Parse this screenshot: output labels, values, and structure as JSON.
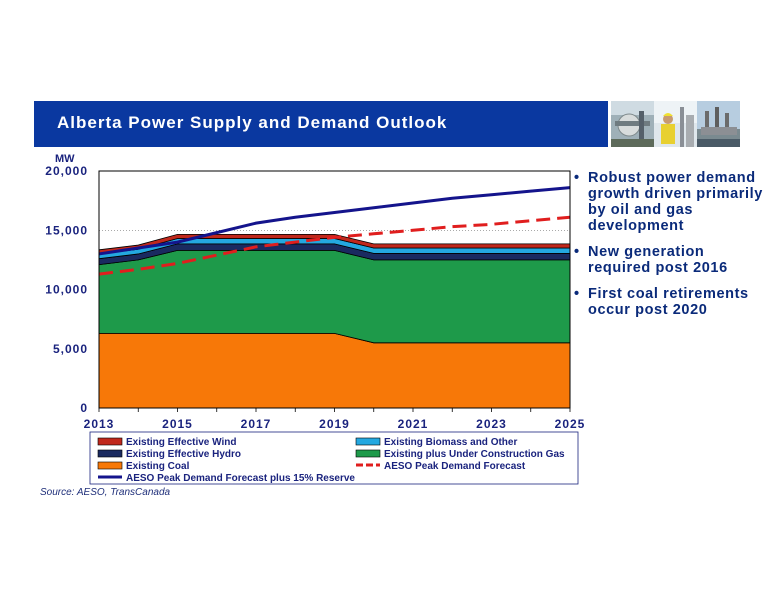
{
  "header": {
    "title": "Alberta Power Supply and Demand Outlook",
    "photos": [
      "industrial-plant-photo",
      "worker-photo",
      "power-plant-photo"
    ]
  },
  "bullets": [
    "Robust power demand growth driven primarily by oil and gas development",
    "New generation required post 2016",
    "First coal retirements occur post 2020"
  ],
  "source": "Source: AESO, TransCanada",
  "colors": {
    "title_bar": "#0a38a0",
    "coal": "#f77808",
    "gas": "#1e9a4a",
    "hydro": "#1a2a60",
    "biomass": "#24a8e0",
    "wind": "#c0281c",
    "demand": "#e01e1e",
    "reserve": "#14148c"
  },
  "chart_data": {
    "type": "area",
    "title": "",
    "ylabel": "MW",
    "xlabel": "",
    "ylim": [
      0,
      20000
    ],
    "yticks": [
      0,
      5000,
      10000,
      15000,
      20000
    ],
    "ytick_labels": [
      "0",
      "5,000",
      "10,000",
      "15,000",
      "20,000"
    ],
    "xticks": [
      2013,
      2015,
      2017,
      2019,
      2021,
      2023,
      2025
    ],
    "x": [
      2013,
      2014,
      2015,
      2016,
      2017,
      2018,
      2019,
      2020,
      2021,
      2022,
      2023,
      2024,
      2025
    ],
    "stacked_series": [
      {
        "name": "Existing Coal",
        "values": [
          6300,
          6300,
          6300,
          6300,
          6300,
          6300,
          6300,
          5500,
          5500,
          5500,
          5500,
          5500,
          5500
        ]
      },
      {
        "name": "Existing plus Under Construction Gas",
        "values": [
          5800,
          6200,
          7000,
          7000,
          7000,
          7000,
          7000,
          7000,
          7000,
          7000,
          7000,
          7000,
          7000
        ]
      },
      {
        "name": "Existing Effective Hydro",
        "values": [
          500,
          500,
          550,
          550,
          550,
          550,
          550,
          550,
          550,
          550,
          550,
          550,
          550
        ]
      },
      {
        "name": "Existing Biomass and Other",
        "values": [
          400,
          400,
          450,
          450,
          450,
          450,
          450,
          450,
          450,
          450,
          450,
          450,
          450
        ]
      },
      {
        "name": "Existing Effective Wind",
        "values": [
          350,
          350,
          350,
          350,
          350,
          350,
          350,
          350,
          350,
          350,
          350,
          350,
          350
        ]
      }
    ],
    "line_series": [
      {
        "name": "AESO Peak Demand Forecast",
        "style": "dashed",
        "values": [
          11300,
          11700,
          12200,
          12900,
          13600,
          14000,
          14400,
          14700,
          15000,
          15300,
          15500,
          15800,
          16100
        ]
      },
      {
        "name": "AESO Peak Demand Forecast plus 15% Reserve",
        "style": "solid",
        "values": [
          13000,
          13500,
          14000,
          14800,
          15600,
          16100,
          16500,
          16900,
          17300,
          17700,
          18000,
          18300,
          18600
        ]
      }
    ],
    "legend": {
      "position": "bottom",
      "entries": [
        {
          "label": "Existing Effective Wind",
          "kind": "box",
          "color": "#c0281c"
        },
        {
          "label": "Existing Biomass and Other",
          "kind": "box",
          "color": "#24a8e0"
        },
        {
          "label": "Existing Effective Hydro",
          "kind": "box",
          "color": "#1a2a60"
        },
        {
          "label": "Existing plus Under Construction Gas",
          "kind": "box",
          "color": "#1e9a4a"
        },
        {
          "label": "Existing Coal",
          "kind": "box",
          "color": "#f77808"
        },
        {
          "label": "AESO Peak Demand Forecast",
          "kind": "dash",
          "color": "#e01e1e"
        },
        {
          "label": "AESO Peak Demand Forecast plus 15% Reserve",
          "kind": "line",
          "color": "#14148c"
        }
      ]
    },
    "grid": true
  }
}
